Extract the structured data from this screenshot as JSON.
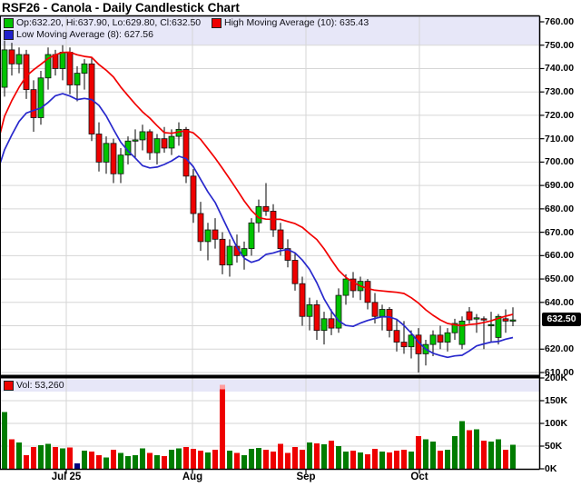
{
  "title": "RSF26 - Canola - Daily Candlestick Chart",
  "legend": {
    "ohlc_label": "Op:632.20, Hi:637.90, Lo:629.80, Cl:632.50",
    "high_ma_label": "High Moving Average (10): 635.43",
    "low_ma_label": "Low Moving Average (8): 627.56"
  },
  "volume_label": "Vol: 53,260",
  "last_price_label": "632.50",
  "colors": {
    "up": "#00c400",
    "down": "#ee0000",
    "up_vol": "#007c00",
    "down_vol": "#ee0000",
    "navy_vol": "#000080",
    "spike_tip": "#ff9e9e",
    "ma_high": "#f20000",
    "ma_low": "#2828cc",
    "band": "#e7e7f8",
    "grid": "#d6d6d6",
    "axis": "#000000",
    "tag_bg": "#000000",
    "tag_fg": "#ffffff"
  },
  "chart_data": {
    "type": "candlestick_with_volume",
    "title": "RSF26 - Canola - Daily Candlestick Chart",
    "last_price": 632.5,
    "last_ohlc": {
      "open": 632.2,
      "high": 637.9,
      "low": 629.8,
      "close": 632.5
    },
    "high_ma_period": 10,
    "high_ma_value": 635.43,
    "low_ma_period": 8,
    "low_ma_value": 627.56,
    "last_volume": 53260,
    "price_axis": {
      "min": 610,
      "max": 760,
      "step": 10,
      "labels": [
        "760.00",
        "750.00",
        "740.00",
        "730.00",
        "720.00",
        "710.00",
        "700.00",
        "690.00",
        "680.00",
        "670.00",
        "660.00",
        "650.00",
        "640.00",
        "620.00",
        "610.00"
      ]
    },
    "volume_axis": {
      "max_k": 200,
      "ticks": [
        {
          "label": "0K",
          "value": 0
        },
        {
          "label": "50K",
          "value": 50
        },
        {
          "label": "100K",
          "value": 100
        },
        {
          "label": "150K",
          "value": 150
        },
        {
          "label": "200K",
          "value": 200
        }
      ]
    },
    "x_ticks": [
      {
        "label": "Jul 25",
        "x": 73
      },
      {
        "label": "Aug",
        "x": 212
      },
      {
        "label": "Sep",
        "x": 337
      },
      {
        "label": "Oct",
        "x": 462
      }
    ],
    "candles": [
      [
        732,
        752,
        728,
        748
      ],
      [
        748,
        751,
        737,
        742
      ],
      [
        742,
        749,
        738,
        746
      ],
      [
        746,
        748,
        727,
        731
      ],
      [
        731,
        735,
        713,
        719
      ],
      [
        719,
        739,
        716,
        736
      ],
      [
        736,
        749,
        731,
        746
      ],
      [
        746,
        748,
        737,
        740
      ],
      [
        740,
        750,
        735,
        747
      ],
      [
        747,
        749,
        729,
        733
      ],
      [
        733,
        741,
        726,
        738
      ],
      [
        738,
        744,
        731,
        742
      ],
      [
        742,
        745,
        709,
        712
      ],
      [
        712,
        717,
        696,
        700
      ],
      [
        700,
        711,
        695,
        708
      ],
      [
        708,
        710,
        691,
        695
      ],
      [
        695,
        706,
        691,
        703
      ],
      [
        703,
        711,
        699,
        709
      ],
      [
        709,
        714,
        702,
        709.5
      ],
      [
        709.5,
        716,
        705,
        713
      ],
      [
        713,
        714,
        701,
        704
      ],
      [
        704,
        712,
        699,
        710
      ],
      [
        710,
        715,
        704,
        706
      ],
      [
        706,
        714,
        703,
        711
      ],
      [
        711,
        717,
        707,
        714
      ],
      [
        714,
        715,
        691,
        694
      ],
      [
        694,
        697,
        674,
        678
      ],
      [
        678,
        683,
        662,
        666
      ],
      [
        666,
        674,
        658,
        671
      ],
      [
        671,
        676,
        663,
        667
      ],
      [
        667,
        670,
        652,
        656
      ],
      [
        656,
        667,
        651,
        664
      ],
      [
        664,
        669,
        657,
        660
      ],
      [
        660,
        666,
        654,
        663
      ],
      [
        663,
        676,
        660,
        674
      ],
      [
        674,
        684,
        670,
        681
      ],
      [
        681,
        691,
        677,
        679
      ],
      [
        679,
        682,
        668,
        671
      ],
      [
        671,
        674,
        660,
        663
      ],
      [
        663,
        667,
        655,
        658
      ],
      [
        658,
        661,
        645,
        648
      ],
      [
        648,
        651,
        630,
        634
      ],
      [
        634,
        642,
        628,
        639
      ],
      [
        639,
        641,
        624,
        628
      ],
      [
        628,
        636,
        622,
        633
      ],
      [
        633,
        637,
        626,
        629
      ],
      [
        629,
        646,
        627,
        643
      ],
      [
        643,
        652,
        639,
        650
      ],
      [
        650,
        653,
        642,
        645
      ],
      [
        645,
        651,
        641,
        649
      ],
      [
        649,
        650,
        637,
        640
      ],
      [
        640,
        644,
        631,
        634
      ],
      [
        634,
        639,
        628,
        637
      ],
      [
        637,
        638,
        625,
        628
      ],
      [
        628,
        633,
        619,
        623
      ],
      [
        623,
        632,
        618,
        621
      ],
      [
        621,
        628,
        616,
        626
      ],
      [
        626,
        629,
        610,
        618
      ],
      [
        618,
        624,
        613,
        622
      ],
      [
        622,
        628,
        617,
        626
      ],
      [
        626,
        630,
        620,
        623
      ],
      [
        623,
        629,
        619,
        627
      ],
      [
        627,
        633,
        624,
        631
      ],
      [
        622,
        634,
        620,
        632
      ],
      [
        636,
        638,
        631,
        632.5
      ],
      [
        633,
        635,
        627,
        633.4
      ],
      [
        633,
        634,
        620,
        632.5
      ],
      [
        630,
        636,
        623,
        630.5
      ],
      [
        625,
        635,
        622,
        634
      ],
      [
        633,
        637,
        627,
        632
      ],
      [
        632.2,
        637.9,
        629.8,
        632.5
      ]
    ],
    "volumes_k": [
      125,
      65,
      58,
      30,
      48,
      52,
      55,
      48,
      45,
      47,
      12,
      40,
      38,
      30,
      25,
      42,
      35,
      28,
      30,
      45,
      35,
      30,
      28,
      42,
      45,
      48,
      44,
      40,
      36,
      42,
      185,
      40,
      35,
      30,
      44,
      46,
      42,
      38,
      55,
      35,
      48,
      42,
      58,
      56,
      54,
      62,
      50,
      38,
      40,
      36,
      32,
      44,
      38,
      36,
      40,
      42,
      38,
      72,
      65,
      60,
      40,
      42,
      72,
      105,
      85,
      87,
      62,
      60,
      65,
      42,
      53
    ],
    "volume_special": {
      "navy_index": 10,
      "spike_index": 30
    },
    "seed_highs": [
      676,
      684,
      692,
      700,
      708,
      716,
      724,
      732,
      740,
      748
    ],
    "seed_lows": [
      680,
      686,
      692,
      698,
      704,
      708,
      712,
      714
    ]
  }
}
